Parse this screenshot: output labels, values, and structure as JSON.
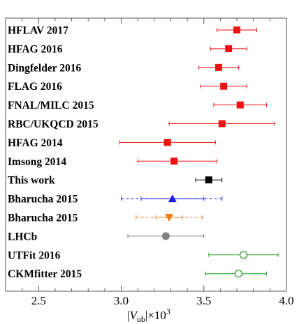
{
  "chart_data": {
    "type": "scatter",
    "title": "",
    "xlabel": "|V_ub|×10^3",
    "xlabel_parts": {
      "bar_left": "|",
      "V": "V",
      "sub": "ub",
      "bar_right": "|×10",
      "sup": "3"
    },
    "xlim": [
      2.3,
      4.0
    ],
    "xticks": [
      2.5,
      3.0,
      3.5,
      4.0
    ],
    "xtick_labels": [
      "2.5",
      "3.0",
      "3.5",
      "4.0"
    ],
    "grid": false,
    "legend": "none",
    "entries": [
      {
        "label": "HFLAV 2017",
        "value": 3.7,
        "err_lo": 0.12,
        "err_hi": 0.12,
        "marker": "square",
        "color": "#ee1111",
        "line": "solid"
      },
      {
        "label": "HFAG 2016",
        "value": 3.65,
        "err_lo": 0.11,
        "err_hi": 0.11,
        "marker": "square",
        "color": "#ee1111",
        "line": "solid"
      },
      {
        "label": "Dingfelder 2016",
        "value": 3.59,
        "err_lo": 0.12,
        "err_hi": 0.12,
        "marker": "square",
        "color": "#ee1111",
        "line": "solid"
      },
      {
        "label": "FLAG 2016",
        "value": 3.62,
        "err_lo": 0.14,
        "err_hi": 0.14,
        "marker": "square",
        "color": "#ee1111",
        "line": "solid"
      },
      {
        "label": "FNAL/MILC 2015",
        "value": 3.72,
        "err_lo": 0.16,
        "err_hi": 0.16,
        "marker": "square",
        "color": "#ee1111",
        "line": "solid"
      },
      {
        "label": "RBC/UKQCD 2015",
        "value": 3.61,
        "err_lo": 0.32,
        "err_hi": 0.32,
        "marker": "square",
        "color": "#ee1111",
        "line": "solid"
      },
      {
        "label": "HFAG 2014",
        "value": 3.28,
        "err_lo": 0.29,
        "err_hi": 0.29,
        "marker": "square",
        "color": "#ee1111",
        "line": "solid"
      },
      {
        "label": "Imsong 2014",
        "value": 3.32,
        "err_lo": 0.22,
        "err_hi": 0.26,
        "marker": "square",
        "color": "#ee1111",
        "line": "solid"
      },
      {
        "label": "This work",
        "value": 3.53,
        "err_lo": 0.08,
        "err_hi": 0.08,
        "marker": "square",
        "color": "#000000",
        "line": "solid"
      },
      {
        "label": "Bharucha 2015",
        "value": 3.31,
        "err_lo": 0.31,
        "err_hi": 0.3,
        "marker": "triangle-up",
        "color": "#1a1aee",
        "line": "dashed",
        "inner_err": 0.19
      },
      {
        "label": "Bharucha 2015",
        "value": 3.29,
        "err_lo": 0.2,
        "err_hi": 0.2,
        "marker": "triangle-down",
        "color": "#f57c14",
        "line": "dashed",
        "inner_err": 0.08
      },
      {
        "label": "LHCb",
        "value": 3.27,
        "err_lo": 0.23,
        "err_hi": 0.23,
        "marker": "circle",
        "color": "#808080",
        "line": "solid"
      },
      {
        "label": "UTFit 2016",
        "value": 3.74,
        "err_lo": 0.21,
        "err_hi": 0.21,
        "marker": "circle-open",
        "color": "#229922",
        "line": "solid"
      },
      {
        "label": "CKMfitter 2015",
        "value": 3.71,
        "err_lo": 0.2,
        "err_hi": 0.17,
        "marker": "circle-open",
        "color": "#229922",
        "line": "solid"
      }
    ]
  }
}
